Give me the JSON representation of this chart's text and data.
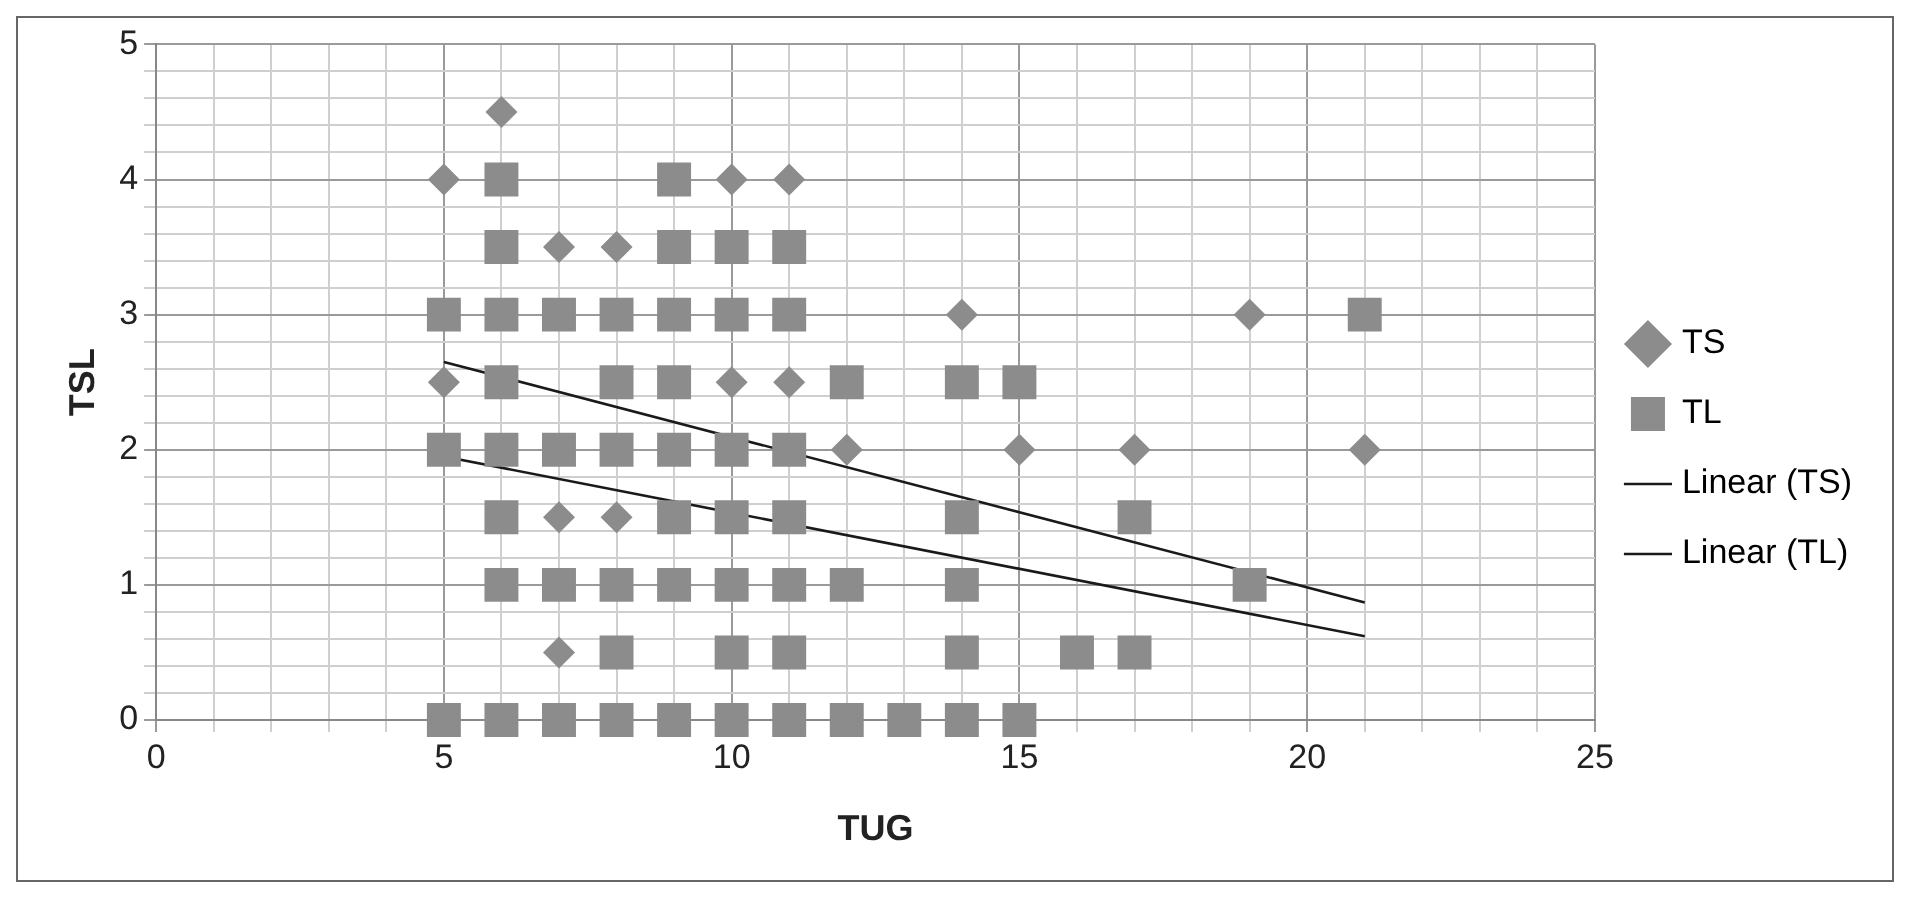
{
  "chart_data": {
    "type": "scatter",
    "xlabel": "TUG",
    "ylabel": "TSL",
    "xlim": [
      0,
      25
    ],
    "ylim": [
      0,
      5
    ],
    "xticks": [
      0,
      {
        "value": 1,
        "label": null
      },
      {
        "value": 2,
        "label": null
      },
      {
        "value": 3,
        "label": null
      },
      {
        "value": 4,
        "label": null
      },
      5,
      {
        "value": 6,
        "label": null
      },
      {
        "value": 7,
        "label": null
      },
      {
        "value": 8,
        "label": null
      },
      {
        "value": 9,
        "label": null
      },
      10,
      {
        "value": 11,
        "label": null
      },
      {
        "value": 12,
        "label": null
      },
      {
        "value": 13,
        "label": null
      },
      {
        "value": 14,
        "label": null
      },
      15,
      {
        "value": 16,
        "label": null
      },
      {
        "value": 17,
        "label": null
      },
      {
        "value": 18,
        "label": null
      },
      {
        "value": 19,
        "label": null
      },
      20,
      {
        "value": 21,
        "label": null
      },
      {
        "value": 22,
        "label": null
      },
      {
        "value": 23,
        "label": null
      },
      {
        "value": 24,
        "label": null
      },
      25
    ],
    "yticks": [
      0,
      {
        "value": 0.2,
        "label": null
      },
      {
        "value": 0.4,
        "label": null
      },
      {
        "value": 0.6,
        "label": null
      },
      {
        "value": 0.8,
        "label": null
      },
      1,
      {
        "value": 1.2,
        "label": null
      },
      {
        "value": 1.4,
        "label": null
      },
      {
        "value": 1.6,
        "label": null
      },
      {
        "value": 1.8,
        "label": null
      },
      2,
      {
        "value": 2.2,
        "label": null
      },
      {
        "value": 2.4,
        "label": null
      },
      {
        "value": 2.6,
        "label": null
      },
      {
        "value": 2.8,
        "label": null
      },
      3,
      {
        "value": 3.2,
        "label": null
      },
      {
        "value": 3.4,
        "label": null
      },
      {
        "value": 3.6,
        "label": null
      },
      {
        "value": 3.8,
        "label": null
      },
      4,
      {
        "value": 4.2,
        "label": null
      },
      {
        "value": 4.4,
        "label": null
      },
      {
        "value": 4.6,
        "label": null
      },
      {
        "value": 4.8,
        "label": null
      },
      5
    ],
    "grid": true,
    "legend": "right",
    "series": [
      {
        "name": "TS",
        "marker": "diamond",
        "color": "#8c8c8c",
        "x": [
          5,
          6,
          7,
          8,
          10,
          11,
          5,
          10,
          11,
          12,
          7,
          8,
          7,
          14,
          15,
          17,
          19,
          21
        ],
        "values": [
          4,
          4.5,
          3.5,
          3.5,
          4,
          4,
          2.5,
          2.5,
          2.5,
          2,
          1.5,
          1.5,
          0.5,
          3,
          2,
          2,
          3,
          2
        ]
      },
      {
        "name": "TL",
        "marker": "square",
        "color": "#8c8c8c",
        "x": [
          6,
          9,
          6,
          9,
          10,
          11,
          5,
          6,
          7,
          8,
          9,
          10,
          11,
          21,
          6,
          8,
          9,
          12,
          14,
          15,
          5,
          6,
          7,
          8,
          9,
          10,
          11,
          6,
          9,
          10,
          11,
          14,
          17,
          6,
          7,
          8,
          9,
          10,
          11,
          12,
          14,
          19,
          8,
          10,
          11,
          14,
          16,
          17,
          5,
          6,
          7,
          8,
          9,
          10,
          11,
          12,
          13,
          14,
          15
        ],
        "values": [
          4,
          4,
          3.5,
          3.5,
          3.5,
          3.5,
          3,
          3,
          3,
          3,
          3,
          3,
          3,
          3,
          2.5,
          2.5,
          2.5,
          2.5,
          2.5,
          2.5,
          2,
          2,
          2,
          2,
          2,
          2,
          2,
          1.5,
          1.5,
          1.5,
          1.5,
          1.5,
          1.5,
          1,
          1,
          1,
          1,
          1,
          1,
          1,
          1,
          1,
          0.5,
          0.5,
          0.5,
          0.5,
          0.5,
          0.5,
          0,
          0,
          0,
          0,
          0,
          0,
          0,
          0,
          0,
          0,
          0
        ]
      },
      {
        "name": "Linear (TS)",
        "type": "line",
        "marker": "none",
        "color": "#1a1a1a",
        "x": [
          5,
          21
        ],
        "values": [
          2.65,
          0.87
        ]
      },
      {
        "name": "Linear (TL)",
        "type": "line",
        "marker": "none",
        "color": "#1a1a1a",
        "x": [
          5,
          21
        ],
        "values": [
          1.95,
          0.62
        ]
      }
    ]
  }
}
